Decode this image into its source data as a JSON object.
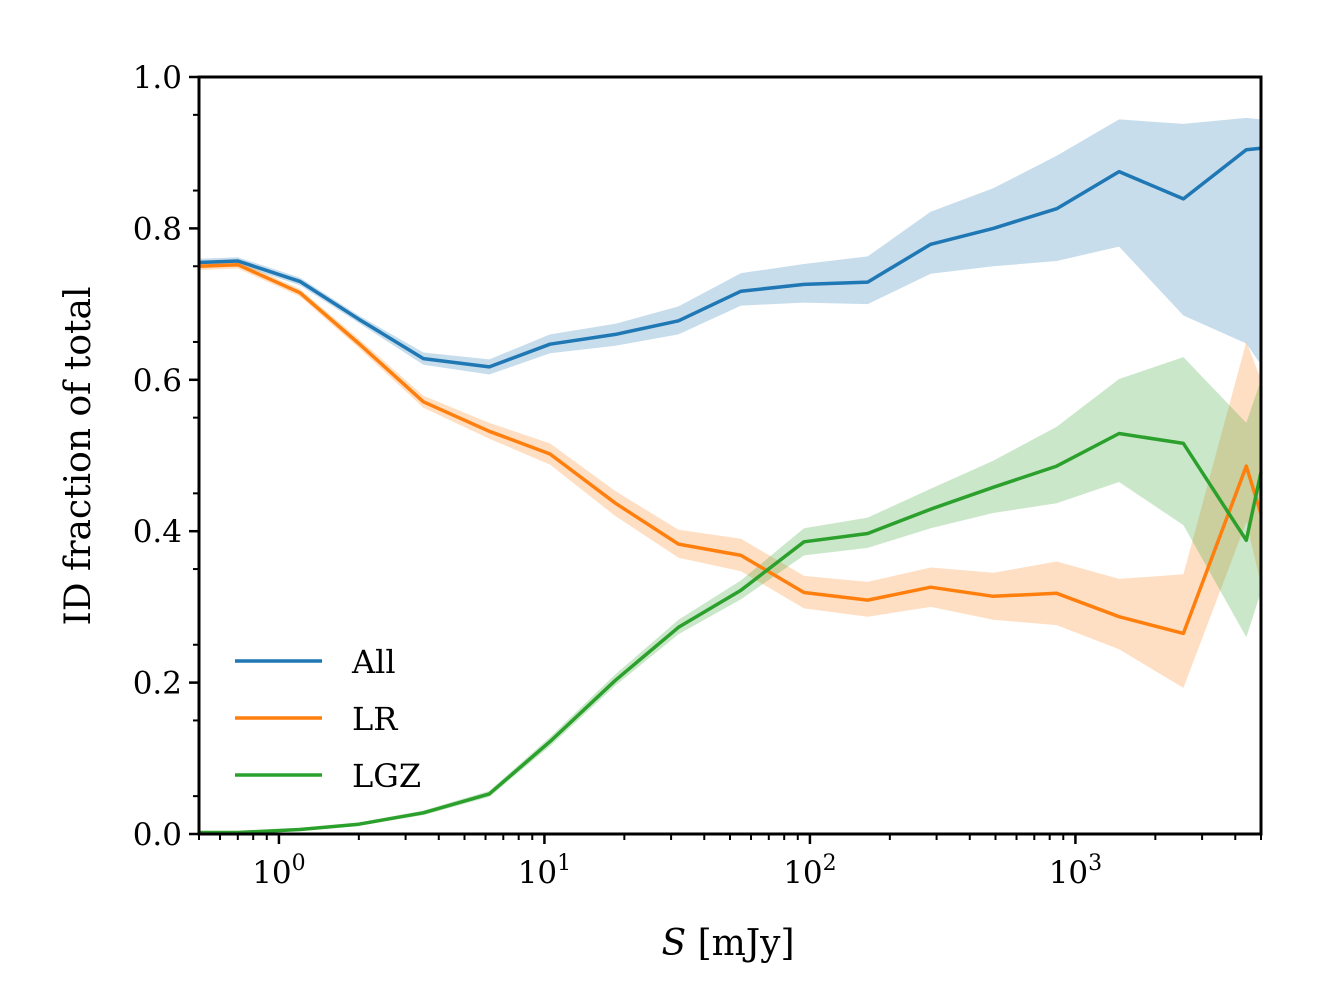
{
  "chart_data": {
    "type": "line",
    "title": "",
    "xlabel": {
      "symbol": "S",
      "unit": "[mJy]"
    },
    "ylabel": "ID fraction of total",
    "x_scale": "log",
    "xlim": [
      0.5,
      5000
    ],
    "ylim": [
      0.0,
      1.0
    ],
    "grid": false,
    "legend": {
      "location": "lower-left"
    },
    "x_ticks": [
      {
        "value": 1,
        "base": "10",
        "exp": "0"
      },
      {
        "value": 10,
        "base": "10",
        "exp": "1"
      },
      {
        "value": 100,
        "base": "10",
        "exp": "2"
      },
      {
        "value": 1000,
        "base": "10",
        "exp": "3"
      }
    ],
    "y_ticks": [
      {
        "value": 0.0,
        "label": "0.0"
      },
      {
        "value": 0.2,
        "label": "0.2"
      },
      {
        "value": 0.4,
        "label": "0.4"
      },
      {
        "value": 0.6,
        "label": "0.6"
      },
      {
        "value": 0.8,
        "label": "0.8"
      },
      {
        "value": 1.0,
        "label": "1.0"
      }
    ],
    "series": [
      {
        "name": "All",
        "color": "#1f77b4",
        "points": [
          {
            "x": 0.5,
            "y": 0.755,
            "lo": 0.75,
            "hi": 0.76
          },
          {
            "x": 0.7,
            "y": 0.757,
            "lo": 0.752,
            "hi": 0.762
          },
          {
            "x": 1.2,
            "y": 0.73,
            "lo": 0.725,
            "hi": 0.735
          },
          {
            "x": 2.0,
            "y": 0.68,
            "lo": 0.675,
            "hi": 0.685
          },
          {
            "x": 3.5,
            "y": 0.628,
            "lo": 0.62,
            "hi": 0.636
          },
          {
            "x": 6.2,
            "y": 0.617,
            "lo": 0.607,
            "hi": 0.627
          },
          {
            "x": 10.5,
            "y": 0.647,
            "lo": 0.635,
            "hi": 0.66
          },
          {
            "x": 18.5,
            "y": 0.66,
            "lo": 0.645,
            "hi": 0.674
          },
          {
            "x": 32,
            "y": 0.678,
            "lo": 0.66,
            "hi": 0.697
          },
          {
            "x": 55,
            "y": 0.717,
            "lo": 0.698,
            "hi": 0.741
          },
          {
            "x": 95,
            "y": 0.726,
            "lo": 0.702,
            "hi": 0.753
          },
          {
            "x": 165,
            "y": 0.729,
            "lo": 0.7,
            "hi": 0.763
          },
          {
            "x": 285,
            "y": 0.779,
            "lo": 0.74,
            "hi": 0.822
          },
          {
            "x": 490,
            "y": 0.8,
            "lo": 0.75,
            "hi": 0.853
          },
          {
            "x": 850,
            "y": 0.826,
            "lo": 0.757,
            "hi": 0.896
          },
          {
            "x": 1460,
            "y": 0.875,
            "lo": 0.776,
            "hi": 0.944
          },
          {
            "x": 2550,
            "y": 0.839,
            "lo": 0.685,
            "hi": 0.938
          },
          {
            "x": 4400,
            "y": 0.904,
            "lo": 0.648,
            "hi": 0.946
          },
          {
            "x": 5000,
            "y": 0.906,
            "lo": 0.62,
            "hi": 0.944
          }
        ]
      },
      {
        "name": "LR",
        "color": "#ff7f0e",
        "points": [
          {
            "x": 0.5,
            "y": 0.75,
            "lo": 0.745,
            "hi": 0.755
          },
          {
            "x": 0.7,
            "y": 0.752,
            "lo": 0.747,
            "hi": 0.757
          },
          {
            "x": 1.2,
            "y": 0.715,
            "lo": 0.71,
            "hi": 0.72
          },
          {
            "x": 2.0,
            "y": 0.648,
            "lo": 0.642,
            "hi": 0.654
          },
          {
            "x": 3.5,
            "y": 0.571,
            "lo": 0.563,
            "hi": 0.579
          },
          {
            "x": 6.2,
            "y": 0.532,
            "lo": 0.522,
            "hi": 0.543
          },
          {
            "x": 10.5,
            "y": 0.502,
            "lo": 0.488,
            "hi": 0.516
          },
          {
            "x": 18.5,
            "y": 0.437,
            "lo": 0.42,
            "hi": 0.453
          },
          {
            "x": 32,
            "y": 0.383,
            "lo": 0.365,
            "hi": 0.402
          },
          {
            "x": 55,
            "y": 0.368,
            "lo": 0.347,
            "hi": 0.39
          },
          {
            "x": 95,
            "y": 0.319,
            "lo": 0.298,
            "hi": 0.341
          },
          {
            "x": 165,
            "y": 0.309,
            "lo": 0.287,
            "hi": 0.333
          },
          {
            "x": 285,
            "y": 0.326,
            "lo": 0.3,
            "hi": 0.352
          },
          {
            "x": 490,
            "y": 0.314,
            "lo": 0.283,
            "hi": 0.345
          },
          {
            "x": 850,
            "y": 0.318,
            "lo": 0.276,
            "hi": 0.36
          },
          {
            "x": 1460,
            "y": 0.287,
            "lo": 0.244,
            "hi": 0.337
          },
          {
            "x": 2550,
            "y": 0.265,
            "lo": 0.193,
            "hi": 0.343
          },
          {
            "x": 4400,
            "y": 0.486,
            "lo": 0.412,
            "hi": 0.65
          },
          {
            "x": 5000,
            "y": 0.423,
            "lo": 0.33,
            "hi": 0.6
          }
        ]
      },
      {
        "name": "LGZ",
        "color": "#2ca02c",
        "points": [
          {
            "x": 0.5,
            "y": 0.002,
            "lo": 0.001,
            "hi": 0.003
          },
          {
            "x": 0.7,
            "y": 0.002,
            "lo": 0.001,
            "hi": 0.003
          },
          {
            "x": 1.2,
            "y": 0.006,
            "lo": 0.004,
            "hi": 0.008
          },
          {
            "x": 2.0,
            "y": 0.013,
            "lo": 0.011,
            "hi": 0.015
          },
          {
            "x": 3.5,
            "y": 0.028,
            "lo": 0.025,
            "hi": 0.031
          },
          {
            "x": 6.2,
            "y": 0.053,
            "lo": 0.049,
            "hi": 0.057
          },
          {
            "x": 10.5,
            "y": 0.122,
            "lo": 0.116,
            "hi": 0.128
          },
          {
            "x": 18.5,
            "y": 0.203,
            "lo": 0.196,
            "hi": 0.211
          },
          {
            "x": 32,
            "y": 0.273,
            "lo": 0.264,
            "hi": 0.283
          },
          {
            "x": 55,
            "y": 0.322,
            "lo": 0.31,
            "hi": 0.335
          },
          {
            "x": 95,
            "y": 0.386,
            "lo": 0.368,
            "hi": 0.404
          },
          {
            "x": 165,
            "y": 0.397,
            "lo": 0.378,
            "hi": 0.418
          },
          {
            "x": 285,
            "y": 0.429,
            "lo": 0.404,
            "hi": 0.456
          },
          {
            "x": 490,
            "y": 0.458,
            "lo": 0.424,
            "hi": 0.493
          },
          {
            "x": 850,
            "y": 0.486,
            "lo": 0.437,
            "hi": 0.538
          },
          {
            "x": 1460,
            "y": 0.529,
            "lo": 0.465,
            "hi": 0.601
          },
          {
            "x": 2550,
            "y": 0.516,
            "lo": 0.408,
            "hi": 0.63
          },
          {
            "x": 4400,
            "y": 0.388,
            "lo": 0.26,
            "hi": 0.543
          },
          {
            "x": 5000,
            "y": 0.478,
            "lo": 0.32,
            "hi": 0.6
          }
        ]
      }
    ]
  }
}
